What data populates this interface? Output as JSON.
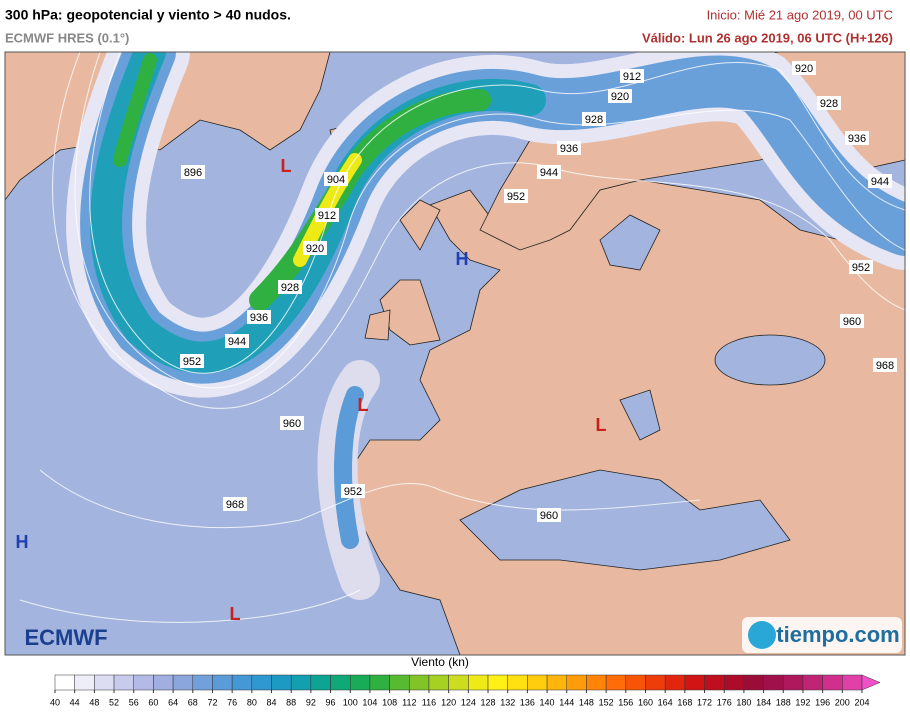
{
  "header": {
    "title": "300 hPa: geopotencial y viento > 40 nudos.",
    "model": "ECMWF HRES (0.1°)",
    "init": "Inicio: Mié 21 ago 2019, 00 UTC",
    "valid": "Válido: Lun 26 ago 2019, 06 UTC (H+126)"
  },
  "map": {
    "contour_labels": [
      896,
      904,
      912,
      920,
      928,
      936,
      944,
      952,
      960,
      968,
      952,
      960,
      952,
      944,
      936,
      928,
      920,
      912,
      920,
      928,
      936,
      944,
      952,
      960,
      968
    ],
    "pressure_centers": [
      "H",
      "H",
      "L",
      "L",
      "L",
      "L"
    ]
  },
  "legend": {
    "title": "Viento (kn)",
    "ticks": [
      40,
      44,
      48,
      52,
      56,
      60,
      64,
      68,
      72,
      76,
      80,
      84,
      88,
      92,
      96,
      100,
      104,
      108,
      112,
      116,
      120,
      124,
      128,
      132,
      136,
      140,
      144,
      148,
      152,
      156,
      160,
      164,
      168,
      172,
      176,
      180,
      184,
      188,
      192,
      196,
      200,
      204
    ],
    "colors": [
      "#ffffff",
      "#eeeef8",
      "#dcdcf2",
      "#c8cbec",
      "#b4bae6",
      "#a0aee0",
      "#8aa6dc",
      "#72a0da",
      "#5a9bd8",
      "#4498d6",
      "#2f98d0",
      "#1c9ac4",
      "#12a0b0",
      "#0ea494",
      "#10a876",
      "#18ac58",
      "#30b040",
      "#58ba30",
      "#80c428",
      "#a6d022",
      "#ccdc1e",
      "#eeea18",
      "#fff015",
      "#ffe010",
      "#ffcc0e",
      "#ffb50c",
      "#ff9c0a",
      "#ff8408",
      "#ff6c08",
      "#f85408",
      "#ee3c0a",
      "#e2260e",
      "#d21414",
      "#c00e1e",
      "#ac0c2a",
      "#9c0c38",
      "#a0104a",
      "#b0185e",
      "#c02474",
      "#d0308c",
      "#e040a8",
      "#f050c8"
    ]
  },
  "logos": {
    "left": "ECMWF",
    "right": "tiempo.com"
  }
}
